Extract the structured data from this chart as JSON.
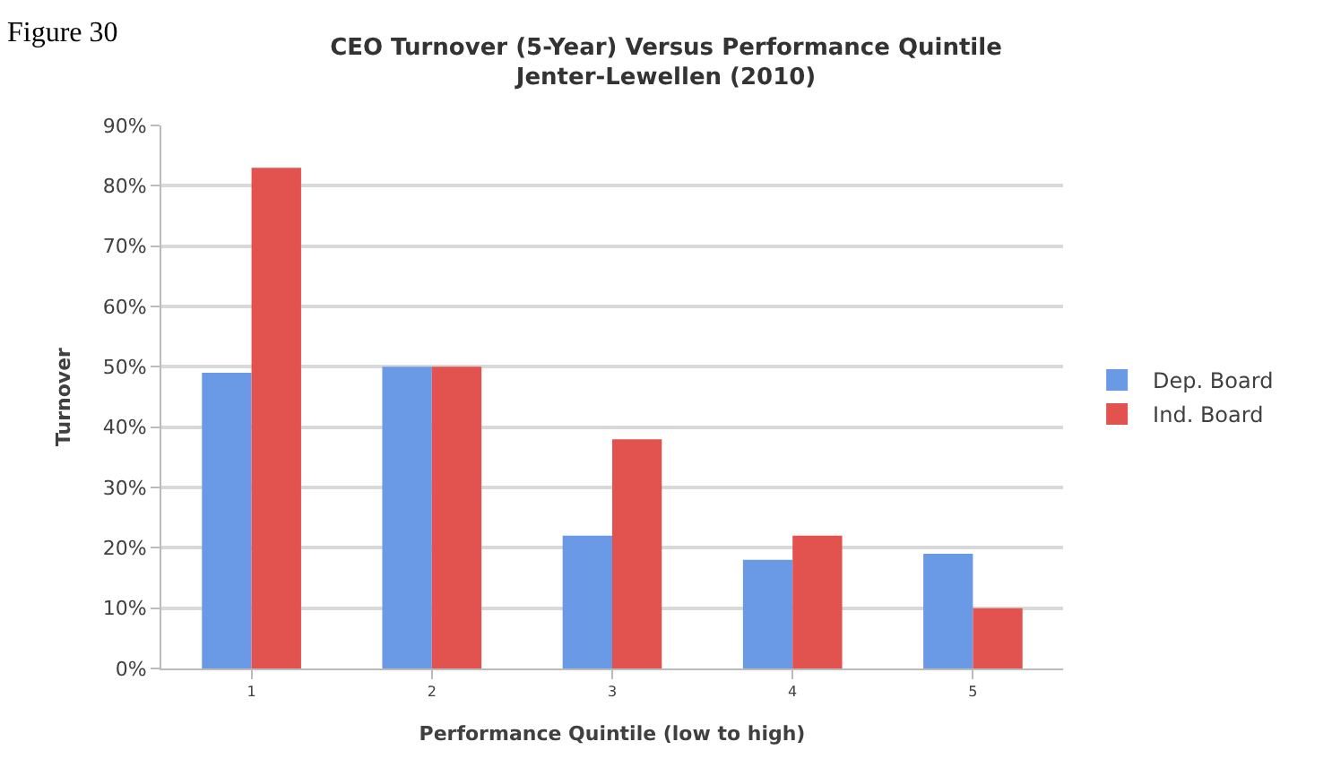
{
  "chart_data": {
    "type": "bar",
    "title": "CEO Turnover (5-Year) Versus Performance Quintile\nJenter-Lewellen (2010)",
    "xlabel": "Performance Quintile (low to high)",
    "ylabel": "Turnover",
    "annotations": [
      "Figure 30"
    ],
    "categories": [
      "1",
      "2",
      "3",
      "4",
      "5"
    ],
    "series": [
      {
        "name": "Dep. Board",
        "color": "#6a9ae6",
        "values": [
          49,
          50,
          22,
          18,
          19
        ]
      },
      {
        "name": "Ind. Board",
        "color": "#e2534f",
        "values": [
          83,
          50,
          38,
          22,
          10
        ]
      }
    ],
    "ylim": [
      0,
      90
    ],
    "yticks": [
      {
        "value": 0,
        "label": "0%"
      },
      {
        "value": 10,
        "label": "10%"
      },
      {
        "value": 20,
        "label": "20%"
      },
      {
        "value": 30,
        "label": "30%"
      },
      {
        "value": 40,
        "label": "40%"
      },
      {
        "value": 50,
        "label": "50%"
      },
      {
        "value": 60,
        "label": "60%"
      },
      {
        "value": 70,
        "label": "70%"
      },
      {
        "value": 80,
        "label": "80%"
      },
      {
        "value": 90,
        "label": "90%"
      }
    ],
    "grid": "y",
    "legend": "right"
  }
}
